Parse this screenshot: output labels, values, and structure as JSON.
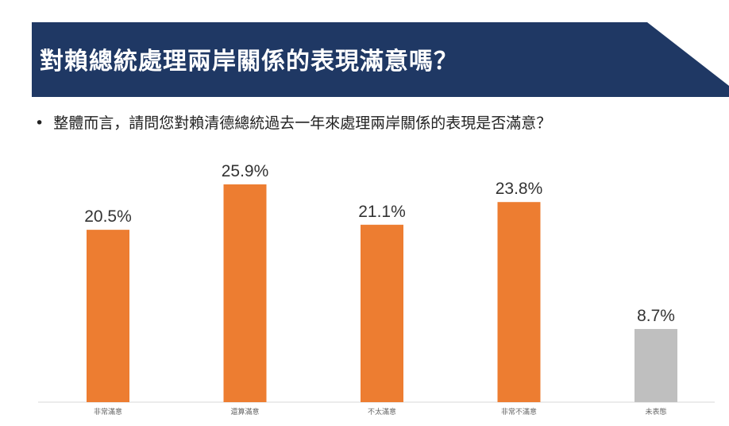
{
  "header": {
    "title": "對賴總統處理兩岸關係的表現滿意嗎？"
  },
  "question": {
    "bullet": "•",
    "text": "整體而言，請問您對賴清德總統過去一年來處理兩岸關係的表現是否滿意？"
  },
  "colors": {
    "banner": "#1f3864",
    "bar_main": "#ed7d31",
    "bar_other": "#bfbfbf",
    "axis": "#d9d9d9"
  },
  "chart_data": {
    "type": "bar",
    "categories": [
      "非常滿意",
      "還算滿意",
      "不太滿意",
      "非常不滿意",
      "未表態"
    ],
    "values": [
      20.5,
      25.9,
      21.1,
      23.8,
      8.7
    ],
    "value_labels": [
      "20.5%",
      "25.9%",
      "21.1%",
      "23.8%",
      "8.7%"
    ],
    "bar_colors": [
      "#ed7d31",
      "#ed7d31",
      "#ed7d31",
      "#ed7d31",
      "#bfbfbf"
    ],
    "ylim": [
      0,
      30
    ],
    "grid": false,
    "legend": "none"
  }
}
